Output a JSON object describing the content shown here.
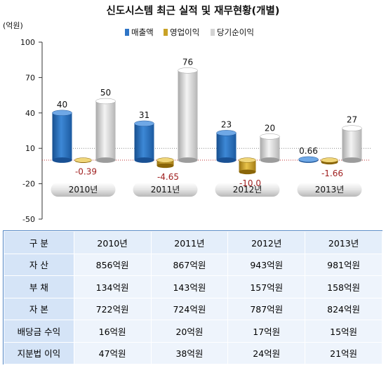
{
  "chart_data": {
    "type": "bar",
    "title": "신도시스템 최근 실적 및 재무현황(개별)",
    "unit_label": "(억원)",
    "categories": [
      "2010년",
      "2011년",
      "2012년",
      "2013년"
    ],
    "series": [
      {
        "name": "매출액",
        "values": [
          40,
          31,
          23,
          0.66
        ],
        "labels": [
          "40",
          "31",
          "23",
          "0.66"
        ],
        "color": "#2e75c6"
      },
      {
        "name": "영업이익",
        "values": [
          -0.39,
          -4.65,
          -10.0,
          -1.66
        ],
        "labels": [
          "-0.39",
          "-4.65",
          "-10.0",
          "-1.66"
        ],
        "color": "#c9a227"
      },
      {
        "name": "당기순이익",
        "values": [
          50,
          76,
          20,
          27
        ],
        "labels": [
          "50",
          "76",
          "20",
          "27"
        ],
        "color": "#d3d3d3"
      }
    ],
    "yticks": [
      "100",
      "70",
      "40",
      "10",
      "-20",
      "-50"
    ],
    "ylim": [
      -50,
      100
    ],
    "legend_position": "top-center",
    "negative_label_color": "#a02020"
  },
  "table": {
    "header": [
      "구    분",
      "2010년",
      "2011년",
      "2012년",
      "2013년"
    ],
    "rows": [
      [
        "자      산",
        "856억원",
        "867억원",
        "943억원",
        "981억원"
      ],
      [
        "부      채",
        "134억원",
        "143억원",
        "157억원",
        "158억원"
      ],
      [
        "자      본",
        "722억원",
        "724억원",
        "787억원",
        "824억원"
      ],
      [
        "배당금 수익",
        "16억원",
        "20억원",
        "17억원",
        "15억원"
      ],
      [
        "지분법 이익",
        "47억원",
        "38억원",
        "24억원",
        "21억원"
      ]
    ]
  }
}
